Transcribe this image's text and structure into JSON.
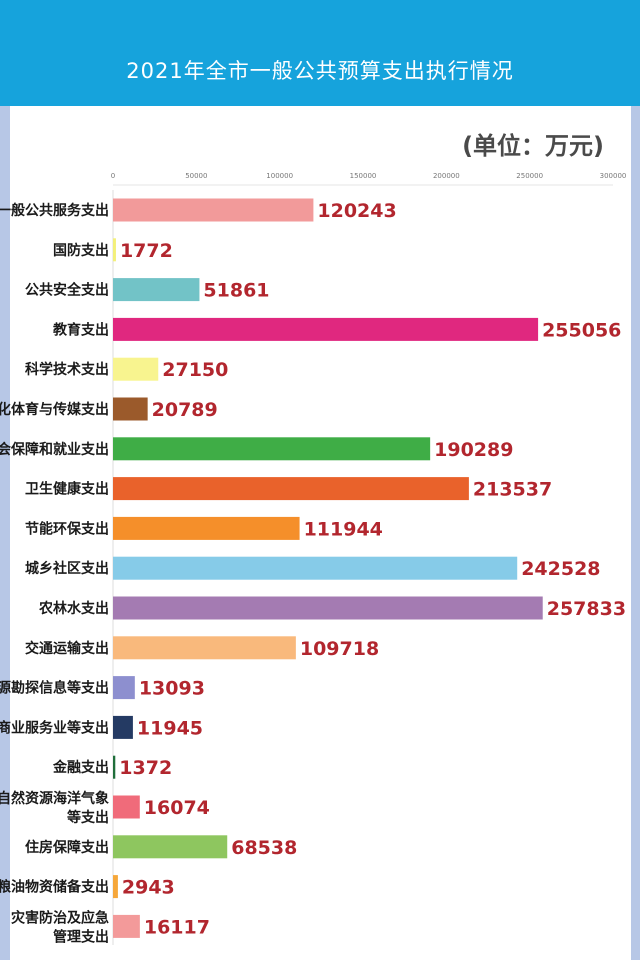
{
  "banner": {
    "title": "2021年全市一般公共预算支出执行情况"
  },
  "unit_label": "(单位：万元)",
  "colors": {
    "banner": "#16a3dc",
    "side": "#b7c7e6",
    "value_text": "#b2262e"
  },
  "chart_data": {
    "type": "bar",
    "orientation": "horizontal",
    "title": "2021年全市一般公共预算支出执行情况",
    "unit": "万元",
    "xlim": [
      0,
      300000
    ],
    "ticks": [
      0,
      50000,
      100000,
      150000,
      200000,
      250000,
      300000
    ],
    "tick_labels": [
      "0",
      "50000",
      "100000",
      "150000",
      "200000",
      "250000",
      "300000"
    ],
    "grid": false,
    "categories": [
      [
        "一般公共服务支出"
      ],
      [
        "国防支出"
      ],
      [
        "公共安全支出"
      ],
      [
        "教育支出"
      ],
      [
        "科学技术支出"
      ],
      [
        "文化体育与传媒支出"
      ],
      [
        "社会保障和就业支出"
      ],
      [
        "卫生健康支出"
      ],
      [
        "节能环保支出"
      ],
      [
        "城乡社区支出"
      ],
      [
        "农林水支出"
      ],
      [
        "交通运输支出"
      ],
      [
        "资源勘探信息等支出"
      ],
      [
        "商业服务业等支出"
      ],
      [
        "金融支出"
      ],
      [
        "自然资源海洋气象",
        "等支出"
      ],
      [
        "住房保障支出"
      ],
      [
        "粮油物资储备支出"
      ],
      [
        "灾害防治及应急",
        "管理支出"
      ]
    ],
    "values": [
      120243,
      1772,
      51861,
      255056,
      27150,
      20789,
      190289,
      213537,
      111944,
      242528,
      257833,
      109718,
      13093,
      11945,
      1372,
      16074,
      68538,
      2943,
      16117
    ],
    "value_labels": [
      "120243",
      "1772",
      "51861",
      "255056",
      "27150",
      "20789",
      "190289",
      "213537",
      "111944",
      "242528",
      "257833",
      "109718",
      "13093",
      "11945",
      "1372",
      "16074",
      "68538",
      "2943",
      "16117"
    ],
    "bar_colors": [
      "#f29a9a",
      "#f3f07a",
      "#72c3c7",
      "#e0287f",
      "#f8f48f",
      "#9b5a2b",
      "#3fad46",
      "#e9622b",
      "#f58f2a",
      "#86cbe8",
      "#a47bb2",
      "#f9b97c",
      "#8d8fcf",
      "#243a63",
      "#1f6e3a",
      "#f06b7a",
      "#8ec65f",
      "#f6a73a",
      "#f39a9a"
    ]
  }
}
